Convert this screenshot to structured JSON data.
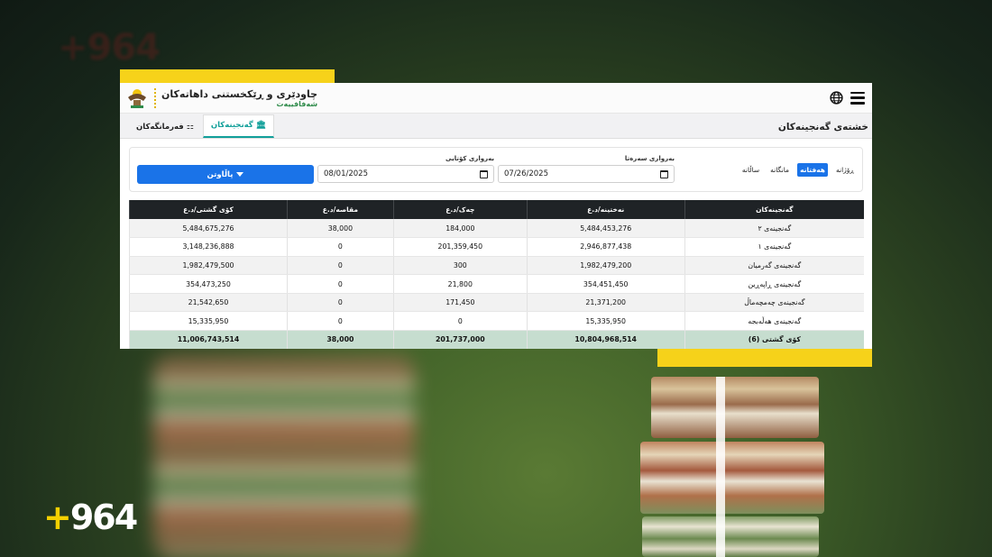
{
  "background": {
    "logo_faded": "+964",
    "logo": "+964",
    "accent_color": "#f6d21a"
  },
  "header": {
    "title": "چاودێری و ڕێکخستنی داهاتەکان",
    "subtitle": "شەفافییەت"
  },
  "page_title": "خشتەی گەنجینەکان",
  "tabs": [
    {
      "label": "گەنجینەکان",
      "icon": "bank-icon",
      "active": true
    },
    {
      "label": "فەرمانگەکان",
      "icon": "sitemap-icon",
      "active": false
    }
  ],
  "filters": {
    "period_options": [
      {
        "label": "ڕۆژانە",
        "active": false
      },
      {
        "label": "هەفتانە",
        "active": true
      },
      {
        "label": "مانگانە",
        "active": false
      },
      {
        "label": "ساڵانە",
        "active": false
      }
    ],
    "start_label": "بەرواری سەرەتا",
    "start_value": "07/26/2025",
    "end_label": "بەرواری کۆتایی",
    "end_value": "08/01/2025",
    "apply_label": "پاڵاوتن"
  },
  "table": {
    "columns": [
      "گەنجینەکان",
      "نەختینە/د.ع",
      "چەک/د.ع",
      "مقاصە/د.ع",
      "کۆی گشتی/د.ع"
    ],
    "rows": [
      [
        "گەنجینەی ٢",
        "5,484,453,276",
        "184,000",
        "38,000",
        "5,484,675,276"
      ],
      [
        "گەنجینەی ١",
        "2,946,877,438",
        "201,359,450",
        "0",
        "3,148,236,888"
      ],
      [
        "گەنجینەی گەرمیان",
        "1,982,479,200",
        "300",
        "0",
        "1,982,479,500"
      ],
      [
        "گەنجینەی ڕاپەڕین",
        "354,451,450",
        "21,800",
        "0",
        "354,473,250"
      ],
      [
        "گەنجینەی چەمچەماڵ",
        "21,371,200",
        "171,450",
        "0",
        "21,542,650"
      ],
      [
        "گەنجینەی هەڵەبجە",
        "15,335,950",
        "0",
        "0",
        "15,335,950"
      ]
    ],
    "total": [
      "کۆی گشتی (6)",
      "10,804,968,514",
      "201,737,000",
      "38,000",
      "11,006,743,514"
    ]
  }
}
